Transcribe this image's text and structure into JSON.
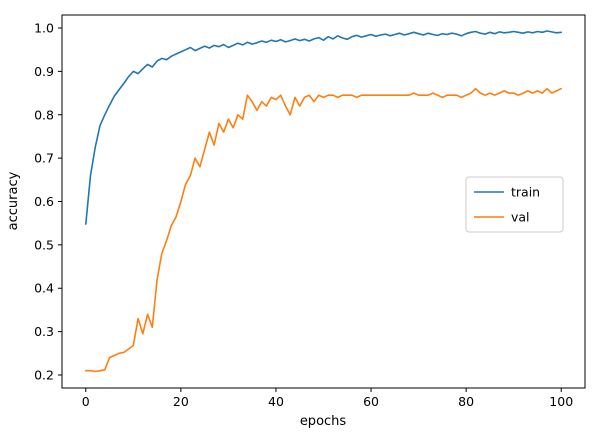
{
  "chart_data": {
    "type": "line",
    "title": "",
    "xlabel": "epochs",
    "ylabel": "accuracy",
    "xlim": [
      -5,
      105
    ],
    "ylim": [
      0.17,
      1.03
    ],
    "grid": false,
    "xtick_values": [
      0,
      20,
      40,
      60,
      80,
      100
    ],
    "xtick_labels": [
      "0",
      "20",
      "40",
      "60",
      "80",
      "100"
    ],
    "ytick_values": [
      0.2,
      0.3,
      0.4,
      0.5,
      0.6,
      0.7,
      0.8,
      0.9,
      1.0
    ],
    "ytick_labels": [
      "0.2",
      "0.3",
      "0.4",
      "0.5",
      "0.6",
      "0.7",
      "0.8",
      "0.9",
      "1.0"
    ],
    "legend": {
      "position": "center right",
      "entries": [
        "train",
        "val"
      ],
      "border_color": "#cccccc",
      "background": "#ffffff"
    },
    "x": [
      0,
      1,
      2,
      3,
      4,
      5,
      6,
      7,
      8,
      9,
      10,
      11,
      12,
      13,
      14,
      15,
      16,
      17,
      18,
      19,
      20,
      21,
      22,
      23,
      24,
      25,
      26,
      27,
      28,
      29,
      30,
      31,
      32,
      33,
      34,
      35,
      36,
      37,
      38,
      39,
      40,
      41,
      42,
      43,
      44,
      45,
      46,
      47,
      48,
      49,
      50,
      51,
      52,
      53,
      54,
      55,
      56,
      57,
      58,
      59,
      60,
      61,
      62,
      63,
      64,
      65,
      66,
      67,
      68,
      69,
      70,
      71,
      72,
      73,
      74,
      75,
      76,
      77,
      78,
      79,
      80,
      81,
      82,
      83,
      84,
      85,
      86,
      87,
      88,
      89,
      90,
      91,
      92,
      93,
      94,
      95,
      96,
      97,
      98,
      99,
      100
    ],
    "series": [
      {
        "name": "train",
        "color": "#1f77b4",
        "values": [
          0.548,
          0.66,
          0.726,
          0.775,
          0.8,
          0.822,
          0.843,
          0.858,
          0.872,
          0.888,
          0.9,
          0.895,
          0.906,
          0.916,
          0.91,
          0.924,
          0.93,
          0.927,
          0.935,
          0.94,
          0.945,
          0.95,
          0.955,
          0.948,
          0.953,
          0.958,
          0.954,
          0.96,
          0.957,
          0.962,
          0.955,
          0.96,
          0.965,
          0.961,
          0.967,
          0.963,
          0.966,
          0.97,
          0.967,
          0.972,
          0.969,
          0.973,
          0.968,
          0.971,
          0.975,
          0.971,
          0.974,
          0.97,
          0.975,
          0.978,
          0.972,
          0.98,
          0.975,
          0.982,
          0.977,
          0.974,
          0.98,
          0.983,
          0.979,
          0.982,
          0.985,
          0.981,
          0.984,
          0.986,
          0.982,
          0.985,
          0.988,
          0.984,
          0.987,
          0.99,
          0.987,
          0.984,
          0.988,
          0.985,
          0.983,
          0.987,
          0.985,
          0.988,
          0.986,
          0.982,
          0.987,
          0.99,
          0.992,
          0.988,
          0.986,
          0.99,
          0.987,
          0.991,
          0.989,
          0.99,
          0.992,
          0.99,
          0.988,
          0.991,
          0.989,
          0.992,
          0.99,
          0.993,
          0.991,
          0.989,
          0.99
        ]
      },
      {
        "name": "val",
        "color": "#ff7f0e",
        "values": [
          0.21,
          0.21,
          0.208,
          0.21,
          0.212,
          0.24,
          0.245,
          0.25,
          0.252,
          0.26,
          0.268,
          0.33,
          0.295,
          0.34,
          0.31,
          0.42,
          0.48,
          0.51,
          0.545,
          0.565,
          0.6,
          0.64,
          0.66,
          0.7,
          0.68,
          0.72,
          0.76,
          0.73,
          0.78,
          0.76,
          0.79,
          0.77,
          0.8,
          0.79,
          0.845,
          0.83,
          0.81,
          0.83,
          0.82,
          0.84,
          0.835,
          0.845,
          0.82,
          0.8,
          0.84,
          0.82,
          0.84,
          0.845,
          0.83,
          0.845,
          0.84,
          0.845,
          0.845,
          0.84,
          0.845,
          0.845,
          0.845,
          0.84,
          0.845,
          0.845,
          0.845,
          0.845,
          0.845,
          0.845,
          0.845,
          0.845,
          0.845,
          0.845,
          0.845,
          0.85,
          0.845,
          0.845,
          0.845,
          0.85,
          0.845,
          0.84,
          0.845,
          0.845,
          0.845,
          0.84,
          0.845,
          0.85,
          0.86,
          0.85,
          0.845,
          0.85,
          0.845,
          0.85,
          0.855,
          0.85,
          0.85,
          0.845,
          0.85,
          0.855,
          0.85,
          0.855,
          0.85,
          0.86,
          0.85,
          0.855,
          0.86
        ]
      }
    ]
  }
}
